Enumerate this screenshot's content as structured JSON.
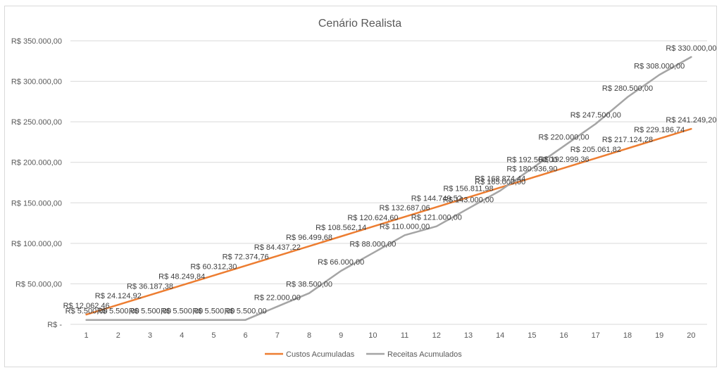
{
  "chart_data": {
    "type": "line",
    "title": "Cenário Realista",
    "categories": [
      "1",
      "2",
      "3",
      "4",
      "5",
      "6",
      "7",
      "8",
      "9",
      "10",
      "11",
      "12",
      "13",
      "14",
      "15",
      "16",
      "17",
      "18",
      "19",
      "20"
    ],
    "y_tick_labels": [
      "R$ -",
      "R$ 50.000,00",
      "R$ 100.000,00",
      "R$ 150.000,00",
      "R$ 200.000,00",
      "R$ 250.000,00",
      "R$ 300.000,00",
      "R$ 350.000,00"
    ],
    "ylim": [
      0,
      350000
    ],
    "y_tick_step": 50000,
    "grid": true,
    "legend_position": "bottom",
    "series": [
      {
        "name": "Custos Acumuladas",
        "color": "#ed7d31",
        "values": [
          12062.46,
          24124.92,
          36187.38,
          48249.84,
          60312.3,
          72374.76,
          84437.22,
          96499.68,
          108562.14,
          120624.6,
          132687.06,
          144749.52,
          156811.98,
          168874.44,
          180936.9,
          192999.36,
          205061.82,
          217124.28,
          229186.74,
          241249.2
        ],
        "labels": [
          "R$ 12.062,46",
          "R$ 24.124,92",
          "R$ 36.187,38",
          "R$ 48.249,84",
          "R$ 60.312,30",
          "R$ 72.374,76",
          "R$ 84.437,22",
          "R$ 96.499,68",
          "R$ 108.562,14",
          "R$ 120.624,60",
          "R$ 132.687,06",
          "R$ 144.749,52",
          "R$ 156.811,98",
          "R$ 168.874,44",
          "R$ 180.936,90",
          "R$ 192.999,36",
          "R$ 205.061,82",
          "R$ 217.124,28",
          "R$ 229.186,74",
          "R$ 241.249,20"
        ]
      },
      {
        "name": "Receitas Acumulados",
        "color": "#a5a5a5",
        "values": [
          5500,
          5500,
          5500,
          5500,
          5500,
          5500,
          22000,
          38500,
          66000,
          88000,
          110000,
          121000,
          143000,
          165000,
          192500,
          220000,
          247500,
          280500,
          308000,
          330000
        ],
        "labels": [
          "R$ 5.500,00",
          "R$ 5.500,00",
          "R$ 5.500,00",
          "R$ 5.500,00",
          "R$ 5.500,00",
          "R$ 5.500,00",
          "R$ 22.000,00",
          "R$ 38.500,00",
          "R$ 66.000,00",
          "R$ 88.000,00",
          "R$ 110.000,00",
          "R$ 121.000,00",
          "R$ 143.000,00",
          "R$ 165.000,00",
          "R$ 192.500,00",
          "R$ 220.000,00",
          "R$ 247.500,00",
          "R$ 280.500,00",
          "R$ 308.000,00",
          "R$ 330.000,00"
        ]
      }
    ]
  }
}
